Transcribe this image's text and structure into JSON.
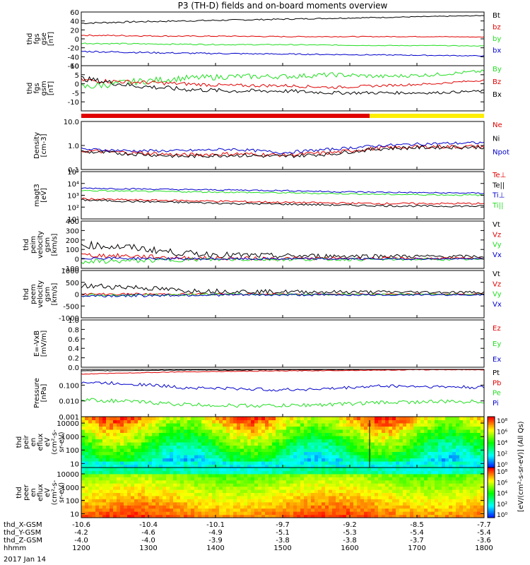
{
  "title": "P3 (TH-D) fields and on-board moments overview",
  "date_label": "2017 Jan 14",
  "colors": {
    "black": "#000000",
    "red": "#e00000",
    "green": "#22dd22",
    "blue": "#0000cc",
    "yellow": "#ffee00"
  },
  "chart_data": [
    {
      "id": "p1",
      "type": "line",
      "ylabel": [
        "thd",
        "fgs",
        "gse",
        "[nT]"
      ],
      "ylim": [
        -60,
        60
      ],
      "ticks": [
        "60",
        "40",
        "20",
        "0",
        "-20",
        "-40",
        "-60"
      ],
      "tickvals": [
        60,
        40,
        20,
        0,
        -20,
        -40,
        -60
      ],
      "grid": false,
      "legend": "right",
      "series": [
        {
          "name": "Bt",
          "color": "black",
          "base": [
            35,
            38,
            40,
            42,
            44,
            46,
            48,
            50,
            52
          ],
          "noise": 2
        },
        {
          "name": "bz",
          "color": "red",
          "base": [
            8,
            7,
            6,
            6,
            5,
            5,
            5,
            5,
            4
          ],
          "noise": 1.5
        },
        {
          "name": "by",
          "color": "green",
          "base": [
            -10,
            -11,
            -12,
            -13,
            -13,
            -14,
            -15,
            -15,
            -16
          ],
          "noise": 1.5
        },
        {
          "name": "bx",
          "color": "blue",
          "base": [
            -28,
            -30,
            -32,
            -33,
            -34,
            -35,
            -36,
            -37,
            -38
          ],
          "noise": 2
        }
      ]
    },
    {
      "id": "p2",
      "type": "line",
      "ylabel": [
        "thd",
        "fgs",
        "gsm",
        "[nT]"
      ],
      "ylim": [
        -15,
        10
      ],
      "ticks": [
        "10",
        "5",
        "0",
        "-5",
        "-10"
      ],
      "tickvals": [
        10,
        5,
        0,
        -5,
        -10
      ],
      "grid": false,
      "legend": "right",
      "series": [
        {
          "name": "By",
          "color": "green",
          "base": [
            -2,
            1,
            3,
            4,
            4,
            5,
            4,
            5,
            7
          ],
          "noise": 2
        },
        {
          "name": "Bz",
          "color": "red",
          "base": [
            2,
            1,
            0,
            -1,
            -1,
            -2,
            -1,
            0,
            2
          ],
          "noise": 1.2
        },
        {
          "name": "Bx",
          "color": "black",
          "base": [
            3,
            -1,
            -3,
            -4,
            -4,
            -5,
            -5,
            -5,
            -4
          ],
          "noise": 1.5
        }
      ]
    },
    {
      "id": "p3",
      "type": "line",
      "ylabel": [
        "Density",
        "[cm-3]"
      ],
      "ylog": true,
      "ylim": [
        0.1,
        10
      ],
      "ticks": [
        "10.0",
        "1.0",
        "0.1"
      ],
      "tickvals": [
        10,
        1,
        0.1
      ],
      "grid": false,
      "legend": "right",
      "series": [
        {
          "name": "Ne",
          "color": "red",
          "base": [
            0.6,
            0.5,
            0.4,
            0.45,
            0.4,
            0.5,
            0.8,
            0.9,
            0.9
          ],
          "noise": 0.08
        },
        {
          "name": "Ni",
          "color": "black",
          "base": [
            0.55,
            0.45,
            0.35,
            0.4,
            0.35,
            0.45,
            0.75,
            0.85,
            0.85
          ],
          "noise": 0.08
        },
        {
          "name": "Npot",
          "color": "blue",
          "base": [
            0.7,
            0.6,
            0.6,
            0.7,
            0.5,
            0.7,
            1.0,
            1.2,
            1.3
          ],
          "noise": 0.06
        }
      ]
    },
    {
      "id": "p4",
      "type": "line",
      "ylabel": [
        "magt3",
        "[eV]"
      ],
      "ylog": true,
      "ylim": [
        10,
        100000
      ],
      "ticks": [
        "10⁵",
        "10⁴",
        "10³",
        "10²",
        "10¹"
      ],
      "tickvals": [
        100000,
        10000,
        1000,
        100,
        10
      ],
      "grid": false,
      "legend": "right",
      "series": [
        {
          "name": "Te⊥",
          "color": "red",
          "base": [
            500,
            400,
            350,
            300,
            250,
            220,
            200,
            200,
            200
          ],
          "noise": 0.08
        },
        {
          "name": "Te||",
          "color": "black",
          "base": [
            400,
            300,
            250,
            200,
            180,
            150,
            130,
            120,
            120
          ],
          "noise": 0.08
        },
        {
          "name": "Ti⊥",
          "color": "blue",
          "base": [
            4000,
            3500,
            3000,
            2800,
            2500,
            2000,
            1800,
            1600,
            1500
          ],
          "noise": 0.06
        },
        {
          "name": "Ti||",
          "color": "green",
          "base": [
            2500,
            2200,
            2000,
            1800,
            1600,
            1400,
            1200,
            1100,
            1000
          ],
          "noise": 0.06
        }
      ]
    },
    {
      "id": "p5",
      "type": "line",
      "ylabel": [
        "thd",
        "peim",
        "velocity",
        "gsm",
        "[km/s]"
      ],
      "ylim": [
        -100,
        400
      ],
      "ticks": [
        "400",
        "300",
        "200",
        "100",
        "0",
        "-100"
      ],
      "tickvals": [
        400,
        300,
        200,
        100,
        0,
        -100
      ],
      "grid": false,
      "legend": "right",
      "series": [
        {
          "name": "Vt",
          "color": "black",
          "base": [
            150,
            120,
            60,
            40,
            30,
            30,
            30,
            25,
            25
          ],
          "noise": 40
        },
        {
          "name": "Vz",
          "color": "red",
          "base": [
            40,
            30,
            10,
            5,
            5,
            5,
            5,
            5,
            5
          ],
          "noise": 25
        },
        {
          "name": "Vy",
          "color": "green",
          "base": [
            -30,
            -20,
            -10,
            -5,
            -5,
            -5,
            -5,
            -5,
            -5
          ],
          "noise": 25
        },
        {
          "name": "Vx",
          "color": "blue",
          "base": [
            10,
            5,
            0,
            0,
            0,
            0,
            0,
            0,
            0
          ],
          "noise": 15
        }
      ]
    },
    {
      "id": "p6",
      "type": "line",
      "ylabel": [
        "thd",
        "peem",
        "velocity",
        "gsm",
        "[km/s]"
      ],
      "ylim": [
        -1000,
        1000
      ],
      "ticks": [
        "1000",
        "500",
        "0",
        "-500",
        "-1000"
      ],
      "tickvals": [
        1000,
        500,
        0,
        -500,
        -1000
      ],
      "grid": false,
      "legend": "right",
      "series": [
        {
          "name": "Vt",
          "color": "black",
          "base": [
            350,
            300,
            150,
            120,
            100,
            90,
            90,
            80,
            80
          ],
          "noise": 120
        },
        {
          "name": "Vz",
          "color": "red",
          "base": [
            0,
            0,
            0,
            0,
            0,
            0,
            0,
            0,
            0
          ],
          "noise": 50
        },
        {
          "name": "Vy",
          "color": "green",
          "base": [
            -50,
            -40,
            -20,
            -10,
            -10,
            -10,
            -10,
            -10,
            -10
          ],
          "noise": 60
        },
        {
          "name": "Vx",
          "color": "blue",
          "base": [
            -80,
            -60,
            -40,
            -30,
            -30,
            -30,
            -30,
            -30,
            -30
          ],
          "noise": 70
        }
      ]
    },
    {
      "id": "p7",
      "type": "line",
      "ylabel": [
        "E=-VxB",
        "[mV/m]"
      ],
      "ylim": [
        0,
        1
      ],
      "ticks": [
        "1.0",
        "0.8",
        "0.6",
        "0.4",
        "0.2",
        "0.0"
      ],
      "tickvals": [
        1,
        0.8,
        0.6,
        0.4,
        0.2,
        0
      ],
      "grid": false,
      "legend": "right",
      "series": [
        {
          "name": "Ez",
          "color": "red",
          "base": [],
          "noise": 0
        },
        {
          "name": "Ey",
          "color": "green",
          "base": [],
          "noise": 0
        },
        {
          "name": "Ex",
          "color": "blue",
          "base": [],
          "noise": 0
        }
      ]
    },
    {
      "id": "p8",
      "type": "line",
      "ylabel": [
        "Pressure",
        "[nPa]"
      ],
      "ylog": true,
      "ylim": [
        0.001,
        1
      ],
      "ticks": [
        "0.100",
        "0.010",
        "0.001"
      ],
      "tickvals": [
        0.1,
        0.01,
        0.001
      ],
      "grid": false,
      "legend": "right",
      "series": [
        {
          "name": "Pt",
          "color": "black",
          "base": [
            0.8,
            0.85,
            0.9,
            0.9,
            0.95,
            0.95,
            0.95,
            1.0,
            1.0
          ],
          "noise": 0.02
        },
        {
          "name": "Pb",
          "color": "red",
          "base": [
            0.5,
            0.6,
            0.7,
            0.75,
            0.8,
            0.85,
            0.9,
            0.95,
            0.95
          ],
          "noise": 0.02
        },
        {
          "name": "Pe",
          "color": "green",
          "base": [
            0.012,
            0.009,
            0.006,
            0.005,
            0.005,
            0.006,
            0.008,
            0.009,
            0.009
          ],
          "noise": 0.12
        },
        {
          "name": "Pi",
          "color": "blue",
          "base": [
            0.15,
            0.12,
            0.07,
            0.06,
            0.05,
            0.06,
            0.09,
            0.08,
            0.07
          ],
          "noise": 0.1
        }
      ]
    },
    {
      "id": "p9",
      "type": "heatmap",
      "ylabel": [
        "thd",
        "peir",
        "en",
        "eflux",
        "eV",
        "(cm²-s-",
        "sr-eV)"
      ],
      "ylog": true,
      "ylim": [
        5,
        30000
      ],
      "ticks": [
        "10000",
        "1000",
        "100",
        "10"
      ],
      "tickvals": [
        10000,
        1000,
        100,
        10
      ],
      "colorbar": true,
      "cbar_ticks": [
        "10⁸",
        "10⁶",
        "10⁴",
        "10²",
        "10⁰"
      ]
    },
    {
      "id": "p10",
      "type": "heatmap",
      "ylabel": [
        "thd",
        "peer",
        "en",
        "eflux",
        "eV",
        "(cm²-s-",
        "sr-eV)"
      ],
      "ylog": true,
      "ylim": [
        5,
        30000
      ],
      "ticks": [
        "10000",
        "1000",
        "100",
        "10"
      ],
      "tickvals": [
        10000,
        1000,
        100,
        10
      ],
      "colorbar": true,
      "cbar_ticks": [
        "10⁸",
        "10⁶",
        "10⁴",
        "10²",
        "10⁰"
      ]
    }
  ],
  "colorbar_label": "[eV/(cm²-s-sr-eV)] (All Qs)",
  "x_axis": {
    "rows": [
      {
        "label": "thd_X-GSM",
        "values": [
          "-10.6",
          "-10.4",
          "-10.1",
          "-9.7",
          "-9.2",
          "-8.5",
          "-7.7"
        ]
      },
      {
        "label": "thd_Y-GSM",
        "values": [
          "-4.2",
          "-4.6",
          "-4.9",
          "-5.1",
          "-5.3",
          "-5.4",
          "-5.4"
        ]
      },
      {
        "label": "thd_Z-GSM",
        "values": [
          "-4.0",
          "-4.0",
          "-3.9",
          "-3.8",
          "-3.8",
          "-3.7",
          "-3.6"
        ]
      },
      {
        "label": "hhmm",
        "values": [
          "1200",
          "1300",
          "1400",
          "1500",
          "1600",
          "1700",
          "1800"
        ]
      }
    ],
    "time_ticks": [
      1200,
      1300,
      1400,
      1500,
      1600,
      1700,
      1800
    ]
  }
}
